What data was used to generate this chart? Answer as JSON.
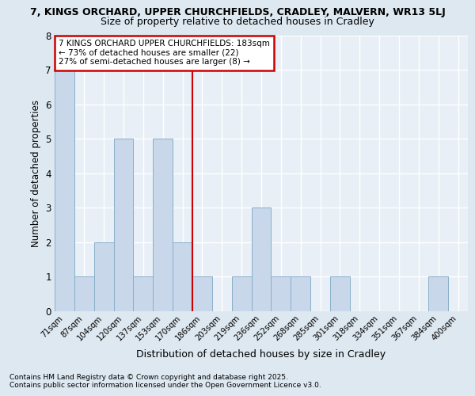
{
  "title_line1": "7, KINGS ORCHARD, UPPER CHURCHFIELDS, CRADLEY, MALVERN, WR13 5LJ",
  "title_line2": "Size of property relative to detached houses in Cradley",
  "xlabel": "Distribution of detached houses by size in Cradley",
  "ylabel": "Number of detached properties",
  "categories": [
    "71sqm",
    "87sqm",
    "104sqm",
    "120sqm",
    "137sqm",
    "153sqm",
    "170sqm",
    "186sqm",
    "203sqm",
    "219sqm",
    "236sqm",
    "252sqm",
    "268sqm",
    "285sqm",
    "301sqm",
    "318sqm",
    "334sqm",
    "351sqm",
    "367sqm",
    "384sqm",
    "400sqm"
  ],
  "values": [
    7,
    1,
    2,
    5,
    1,
    5,
    2,
    1,
    0,
    1,
    3,
    1,
    1,
    0,
    1,
    0,
    0,
    0,
    0,
    1,
    0
  ],
  "bar_color": "#c8d8ea",
  "bar_edge_color": "#8aafc8",
  "subject_line_index": 7,
  "annotation_title": "7 KINGS ORCHARD UPPER CHURCHFIELDS: 183sqm",
  "annotation_line2": "← 73% of detached houses are smaller (22)",
  "annotation_line3": "27% of semi-detached houses are larger (8) →",
  "annotation_box_color": "#ffffff",
  "annotation_box_edge": "#cc0000",
  "vline_color": "#cc0000",
  "ylim": [
    0,
    8
  ],
  "yticks": [
    0,
    1,
    2,
    3,
    4,
    5,
    6,
    7,
    8
  ],
  "background_color": "#dde8f0",
  "plot_bg_color": "#e8eff6",
  "grid_color": "#ffffff",
  "footnote1": "Contains HM Land Registry data © Crown copyright and database right 2025.",
  "footnote2": "Contains public sector information licensed under the Open Government Licence v3.0."
}
